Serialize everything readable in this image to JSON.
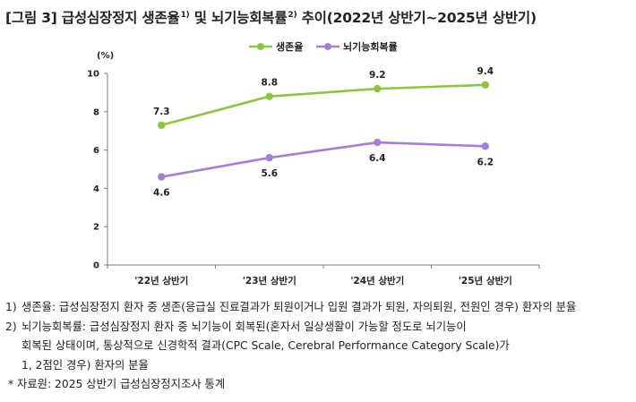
{
  "title": {
    "prefix": "[그림 3] 급성심장정지 생존율",
    "sup1": "1)",
    "mid": " 및 뇌기능회복률",
    "sup2": "2)",
    "suffix": " 추이(2022년 상반기~2025년 상반기)"
  },
  "chart_data": {
    "type": "line",
    "unit_label": "(%)",
    "categories": [
      "'22년 상반기",
      "'23년 상반기",
      "'24년 상반기",
      "'25년 상반기"
    ],
    "ylim": [
      0,
      10
    ],
    "yticks": [
      0,
      2,
      4,
      6,
      8,
      10
    ],
    "grid": false,
    "legend_position": "top-right",
    "series": [
      {
        "name": "생존율",
        "color": "#8cc63f",
        "values": [
          7.3,
          8.8,
          9.2,
          9.4
        ],
        "label_position": "above"
      },
      {
        "name": "뇌기능회복률",
        "color": "#a57fd6",
        "values": [
          4.6,
          5.6,
          6.4,
          6.2
        ],
        "label_position": "below"
      }
    ]
  },
  "notes": {
    "n1_num": "1)",
    "n1_text": "생존율: 급성심장정지 환자 중 생존(응급실 진료결과가 퇴원이거나 입원 결과가 퇴원, 자의퇴원, 전원인 경우) 환자의 분율",
    "n2_num": "2)",
    "n2_text": "뇌기능회복률: 급성심장정지 환자 중 뇌기능이 회복된(혼자서 일상생활이 가능할 정도로 뇌기능이",
    "n2_cont1": "회복된 상태이며, 통상적으로 신경학적 결과(CPC Scale, Cerebral Performance Category Scale)가",
    "n2_cont2": "1, 2점인 경우) 환자의 분율",
    "source": "* 자료원: 2025 상반기 급성심장정지조사 통계"
  }
}
